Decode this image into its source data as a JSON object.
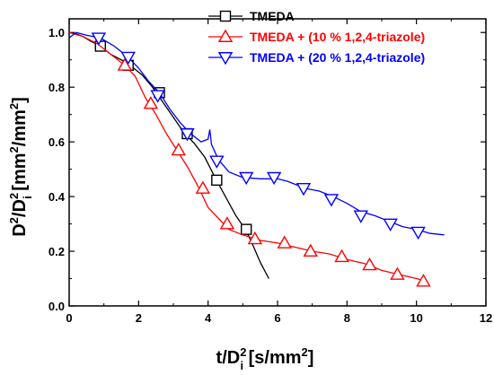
{
  "chart_data": {
    "type": "line",
    "title": "",
    "xlabel": {
      "base": "t/D",
      "sup": "2",
      "sub": "i",
      "unit_pre": " [s/mm",
      "unit_sup": "2",
      "unit_post": "]"
    },
    "ylabel": {
      "d": "D",
      "d_sup": "2",
      "slash": "/D",
      "di_sup": "2",
      "di_sub": "i",
      "unit_pre": " [mm",
      "unit_sup1": "2",
      "unit_mid": "/mm",
      "unit_sup2": "2",
      "unit_post": "]"
    },
    "xlim": [
      0,
      12
    ],
    "ylim": [
      0,
      1.05
    ],
    "xticks": [
      "0",
      "2",
      "4",
      "6",
      "8",
      "10",
      "12"
    ],
    "yticks": [
      "0.0",
      "0.2",
      "0.4",
      "0.6",
      "0.8",
      "1.0"
    ],
    "legend_position": "top-right",
    "grid": false,
    "series": [
      {
        "name": "TMEDA",
        "color": "#000000",
        "marker": "square",
        "points": [
          [
            0.0,
            1.0
          ],
          [
            0.2,
            0.995
          ],
          [
            0.4,
            0.985
          ],
          [
            0.6,
            0.97
          ],
          [
            0.9,
            0.95
          ],
          [
            1.2,
            0.92
          ],
          [
            1.5,
            0.9
          ],
          [
            1.8,
            0.875
          ],
          [
            2.1,
            0.845
          ],
          [
            2.4,
            0.8
          ],
          [
            2.7,
            0.745
          ],
          [
            3.0,
            0.69
          ],
          [
            3.3,
            0.635
          ],
          [
            3.6,
            0.595
          ],
          [
            3.9,
            0.545
          ],
          [
            4.2,
            0.47
          ],
          [
            4.5,
            0.4
          ],
          [
            4.8,
            0.33
          ],
          [
            5.1,
            0.275
          ],
          [
            5.3,
            0.22
          ],
          [
            5.5,
            0.16
          ],
          [
            5.75,
            0.1
          ]
        ],
        "markers": [
          [
            0.9,
            0.95
          ],
          [
            1.7,
            0.88
          ],
          [
            2.6,
            0.78
          ],
          [
            3.4,
            0.63
          ],
          [
            4.25,
            0.46
          ],
          [
            5.1,
            0.28
          ]
        ]
      },
      {
        "name": "TMEDA + (10 % 1,2,4-triazole)",
        "color": "#ff0000",
        "marker": "triangle-up",
        "points": [
          [
            0.0,
            1.0
          ],
          [
            0.4,
            0.985
          ],
          [
            0.8,
            0.96
          ],
          [
            1.2,
            0.92
          ],
          [
            1.6,
            0.88
          ],
          [
            1.9,
            0.84
          ],
          [
            2.2,
            0.76
          ],
          [
            2.5,
            0.7
          ],
          [
            2.8,
            0.63
          ],
          [
            3.1,
            0.57
          ],
          [
            3.4,
            0.51
          ],
          [
            3.7,
            0.44
          ],
          [
            4.0,
            0.36
          ],
          [
            4.3,
            0.32
          ],
          [
            4.6,
            0.28
          ],
          [
            5.0,
            0.26
          ],
          [
            5.5,
            0.24
          ],
          [
            6.0,
            0.23
          ],
          [
            6.5,
            0.215
          ],
          [
            7.0,
            0.2
          ],
          [
            7.5,
            0.19
          ],
          [
            8.0,
            0.17
          ],
          [
            8.5,
            0.155
          ],
          [
            9.0,
            0.13
          ],
          [
            9.5,
            0.115
          ],
          [
            10.0,
            0.1
          ],
          [
            10.3,
            0.09
          ]
        ],
        "markers": [
          [
            1.6,
            0.88
          ],
          [
            2.35,
            0.74
          ],
          [
            3.15,
            0.57
          ],
          [
            3.85,
            0.43
          ],
          [
            4.55,
            0.3
          ],
          [
            5.35,
            0.245
          ],
          [
            6.2,
            0.23
          ],
          [
            6.95,
            0.2
          ],
          [
            7.85,
            0.18
          ],
          [
            8.65,
            0.15
          ],
          [
            9.45,
            0.115
          ],
          [
            10.2,
            0.09
          ]
        ]
      },
      {
        "name": "TMEDA + (20 % 1,2,4-triazole)",
        "color": "#0000ff",
        "marker": "triangle-down",
        "points": [
          [
            0.0,
            0.98
          ],
          [
            0.2,
            1.0
          ],
          [
            0.5,
            0.99
          ],
          [
            0.9,
            0.98
          ],
          [
            1.3,
            0.95
          ],
          [
            1.7,
            0.91
          ],
          [
            2.0,
            0.87
          ],
          [
            2.3,
            0.82
          ],
          [
            2.6,
            0.78
          ],
          [
            2.9,
            0.72
          ],
          [
            3.2,
            0.67
          ],
          [
            3.5,
            0.63
          ],
          [
            3.8,
            0.6
          ],
          [
            4.0,
            0.61
          ],
          [
            4.05,
            0.645
          ],
          [
            4.1,
            0.59
          ],
          [
            4.3,
            0.535
          ],
          [
            4.6,
            0.49
          ],
          [
            5.0,
            0.47
          ],
          [
            5.5,
            0.465
          ],
          [
            6.0,
            0.465
          ],
          [
            6.3,
            0.455
          ],
          [
            6.6,
            0.44
          ],
          [
            6.8,
            0.43
          ],
          [
            7.2,
            0.42
          ],
          [
            7.6,
            0.4
          ],
          [
            8.0,
            0.375
          ],
          [
            8.4,
            0.345
          ],
          [
            8.8,
            0.33
          ],
          [
            9.2,
            0.31
          ],
          [
            9.6,
            0.29
          ],
          [
            10.0,
            0.28
          ],
          [
            10.4,
            0.265
          ],
          [
            10.8,
            0.26
          ]
        ],
        "markers": [
          [
            0.85,
            0.98
          ],
          [
            1.7,
            0.91
          ],
          [
            2.55,
            0.77
          ],
          [
            3.4,
            0.63
          ],
          [
            4.25,
            0.53
          ],
          [
            5.1,
            0.47
          ],
          [
            5.9,
            0.47
          ],
          [
            6.75,
            0.43
          ],
          [
            7.55,
            0.39
          ],
          [
            8.4,
            0.33
          ],
          [
            9.25,
            0.3
          ],
          [
            10.05,
            0.27
          ]
        ]
      }
    ]
  }
}
